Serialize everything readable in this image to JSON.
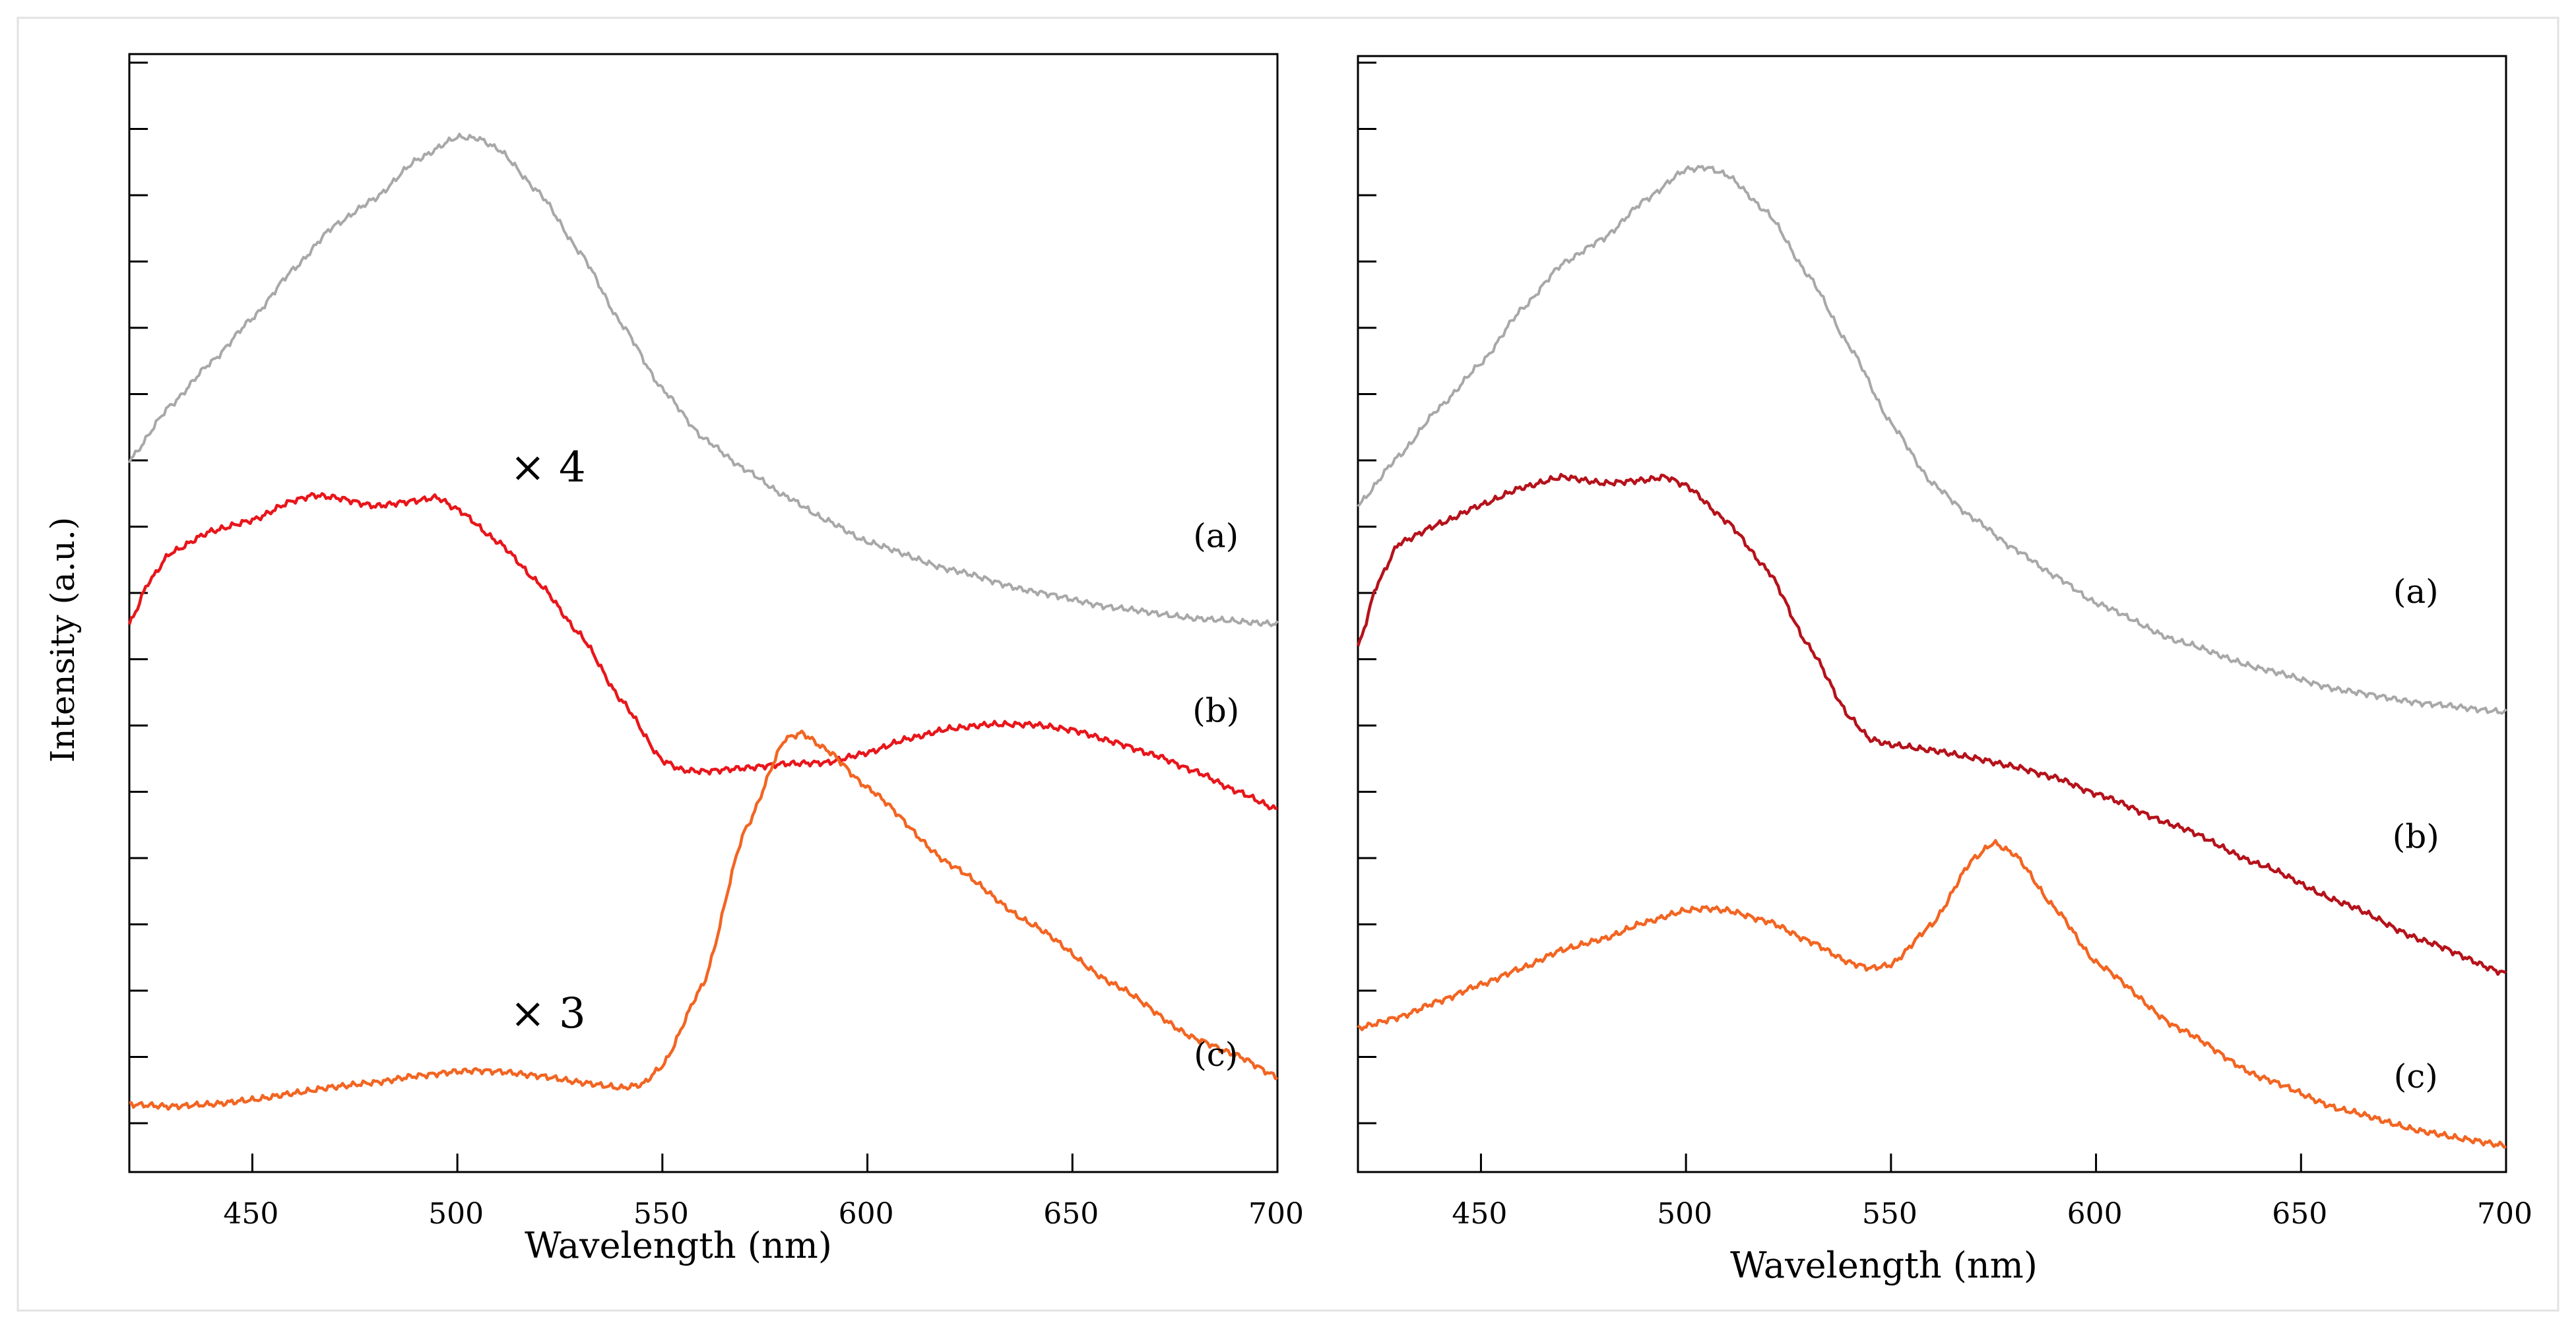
{
  "chart_data": [
    {
      "type": "line",
      "panel": "left",
      "title": "",
      "xlabel": "Wavelength (nm)",
      "ylabel": "Intensity (a.u.)",
      "xlim": [
        420,
        700
      ],
      "ylim": [
        0,
        1
      ],
      "xticks": [
        450,
        500,
        550,
        600,
        650,
        700
      ],
      "xtick_labels": [
        "450",
        "500",
        "550",
        "600",
        "650",
        "700"
      ],
      "y_tick_count": 17,
      "y_tick_labels_shown": false,
      "annotations": [
        {
          "text": "× 4",
          "x": 520,
          "y": 0.613
        },
        {
          "text": "× 3",
          "x": 520,
          "y": 0.137
        }
      ],
      "series": [
        {
          "name": "(a)",
          "color": "#a8a8a8",
          "label_at": {
            "x": 685,
            "y": 0.57
          },
          "x": [
            420,
            430,
            440,
            450,
            460,
            470,
            480,
            490,
            500,
            505,
            510,
            520,
            530,
            540,
            550,
            560,
            570,
            580,
            590,
            600,
            620,
            640,
            660,
            680,
            700
          ],
          "y": [
            0.64,
            0.69,
            0.73,
            0.77,
            0.815,
            0.855,
            0.88,
            0.915,
            0.936,
            0.935,
            0.925,
            0.885,
            0.83,
            0.765,
            0.705,
            0.66,
            0.632,
            0.607,
            0.585,
            0.565,
            0.54,
            0.52,
            0.505,
            0.495,
            0.49
          ]
        },
        {
          "name": "(b)",
          "color": "#e8161b",
          "label_at": {
            "x": 685,
            "y": 0.41
          },
          "x": [
            420,
            425,
            430,
            440,
            450,
            460,
            465,
            470,
            480,
            490,
            495,
            500,
            510,
            520,
            530,
            540,
            550,
            555,
            560,
            570,
            580,
            590,
            600,
            610,
            620,
            630,
            640,
            650,
            660,
            670,
            680,
            690,
            700
          ],
          "y": [
            0.49,
            0.53,
            0.555,
            0.575,
            0.585,
            0.603,
            0.608,
            0.606,
            0.598,
            0.603,
            0.606,
            0.595,
            0.565,
            0.527,
            0.48,
            0.42,
            0.365,
            0.356,
            0.355,
            0.358,
            0.362,
            0.363,
            0.372,
            0.385,
            0.394,
            0.398,
            0.398,
            0.393,
            0.382,
            0.37,
            0.355,
            0.337,
            0.32
          ]
        },
        {
          "name": "(c)",
          "color": "#f26522",
          "label_at": {
            "x": 685,
            "y": 0.095
          },
          "x": [
            420,
            430,
            440,
            450,
            460,
            470,
            480,
            490,
            500,
            505,
            510,
            520,
            530,
            540,
            545,
            550,
            560,
            570,
            580,
            584,
            590,
            600,
            620,
            640,
            660,
            680,
            690,
            700
          ],
          "y": [
            0.05,
            0.048,
            0.05,
            0.054,
            0.06,
            0.066,
            0.07,
            0.076,
            0.08,
            0.081,
            0.08,
            0.076,
            0.07,
            0.065,
            0.068,
            0.085,
            0.16,
            0.3,
            0.385,
            0.39,
            0.375,
            0.34,
            0.27,
            0.215,
            0.16,
            0.11,
            0.095,
            0.075
          ]
        }
      ]
    },
    {
      "type": "line",
      "panel": "right",
      "title": "",
      "xlabel": "Wavelength (nm)",
      "ylabel": "",
      "xlim": [
        420,
        700
      ],
      "ylim": [
        0,
        1
      ],
      "xticks": [
        450,
        500,
        550,
        600,
        650,
        700
      ],
      "xtick_labels": [
        "450",
        "500",
        "550",
        "600",
        "650",
        "700"
      ],
      "y_tick_count": 17,
      "y_tick_labels_shown": false,
      "series": [
        {
          "name": "(a)",
          "color": "#a8a8a8",
          "label_at": {
            "x": 678,
            "y": 0.52
          },
          "x": [
            420,
            430,
            440,
            450,
            460,
            470,
            480,
            490,
            500,
            505,
            510,
            520,
            530,
            540,
            550,
            560,
            570,
            580,
            590,
            600,
            620,
            640,
            660,
            680,
            700
          ],
          "y": [
            0.6,
            0.645,
            0.69,
            0.73,
            0.78,
            0.822,
            0.845,
            0.88,
            0.908,
            0.91,
            0.903,
            0.868,
            0.81,
            0.745,
            0.675,
            0.62,
            0.588,
            0.56,
            0.535,
            0.51,
            0.475,
            0.45,
            0.43,
            0.418,
            0.41
          ]
        },
        {
          "name": "(b)",
          "color": "#b5121b",
          "label_at": {
            "x": 678,
            "y": 0.295
          },
          "x": [
            420,
            425,
            430,
            440,
            450,
            460,
            470,
            480,
            490,
            495,
            500,
            510,
            520,
            530,
            540,
            545,
            550,
            560,
            570,
            580,
            590,
            600,
            620,
            640,
            660,
            680,
            700
          ],
          "y": [
            0.47,
            0.53,
            0.565,
            0.583,
            0.6,
            0.616,
            0.626,
            0.62,
            0.623,
            0.626,
            0.618,
            0.585,
            0.54,
            0.47,
            0.405,
            0.385,
            0.38,
            0.375,
            0.368,
            0.36,
            0.35,
            0.335,
            0.305,
            0.27,
            0.235,
            0.2,
            0.17
          ]
        },
        {
          "name": "(c)",
          "color": "#f26522",
          "label_at": {
            "x": 678,
            "y": 0.075
          },
          "x": [
            420,
            430,
            440,
            450,
            460,
            470,
            480,
            490,
            500,
            505,
            510,
            520,
            530,
            540,
            545,
            550,
            560,
            570,
            575,
            580,
            590,
            600,
            620,
            640,
            660,
            680,
            690,
            700
          ],
          "y": [
            0.12,
            0.13,
            0.145,
            0.16,
            0.175,
            0.192,
            0.202,
            0.217,
            0.228,
            0.23,
            0.228,
            0.218,
            0.2,
            0.18,
            0.175,
            0.178,
            0.215,
            0.275,
            0.29,
            0.28,
            0.23,
            0.18,
            0.12,
            0.075,
            0.045,
            0.025,
            0.018,
            0.012
          ]
        }
      ]
    }
  ]
}
